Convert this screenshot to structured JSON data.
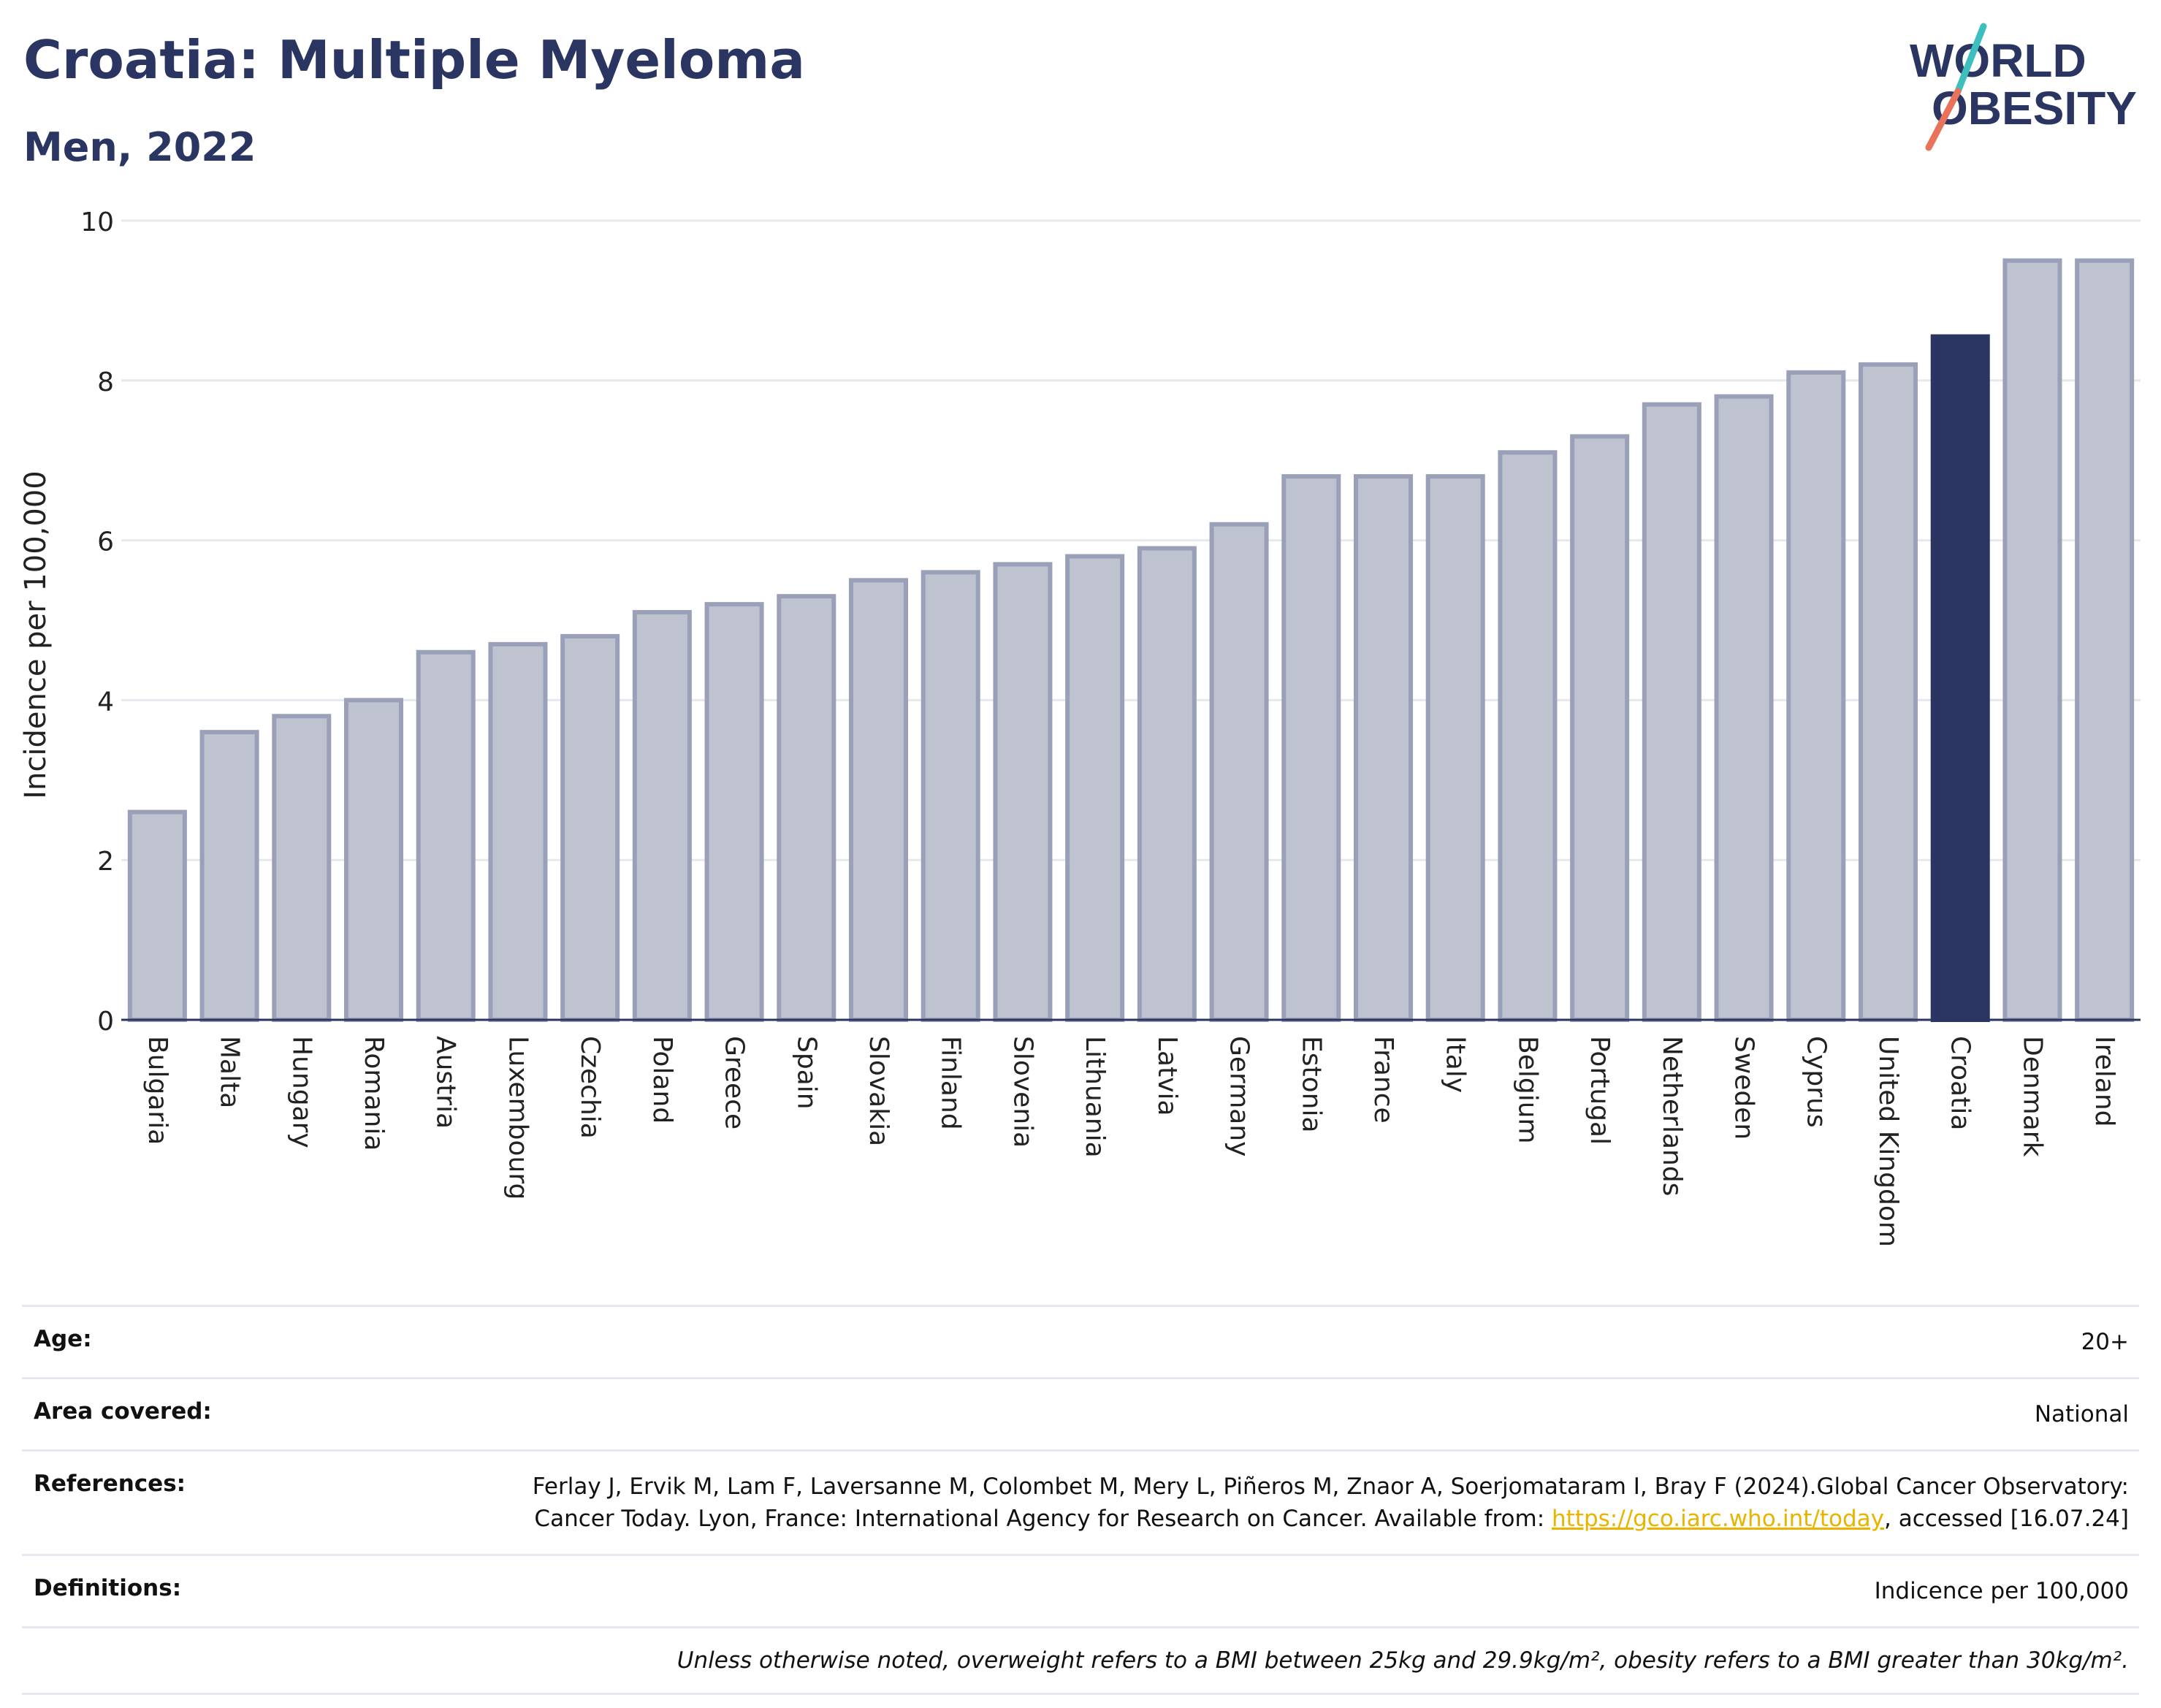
{
  "header": {
    "title": "Croatia: Multiple Myeloma",
    "subtitle": "Men, 2022",
    "logo_line1": "WORLD",
    "logo_line2": "OBESITY"
  },
  "colors": {
    "bar": "#bfc3d0",
    "bar_edge": "#9aa0b8",
    "highlight": "#2a3561",
    "title": "#2a3561",
    "grid": "#e6e8ee",
    "logo_teal": "#3dbfbf",
    "logo_coral": "#e8735a"
  },
  "chart_data": {
    "type": "bar",
    "title": "Croatia: Multiple Myeloma",
    "subtitle": "Men, 2022",
    "ylabel": "Incidence per 100,000",
    "xlabel": "",
    "ylim": [
      0,
      10
    ],
    "yticks": [
      0,
      2,
      4,
      6,
      8,
      10
    ],
    "grid": true,
    "highlight_category": "Croatia",
    "categories": [
      "Bulgaria",
      "Malta",
      "Hungary",
      "Romania",
      "Austria",
      "Luxembourg",
      "Czechia",
      "Poland",
      "Greece",
      "Spain",
      "Slovakia",
      "Finland",
      "Slovenia",
      "Lithuania",
      "Latvia",
      "Germany",
      "Estonia",
      "France",
      "Italy",
      "Belgium",
      "Portugal",
      "Netherlands",
      "Sweden",
      "Cyprus",
      "United Kingdom",
      "Croatia",
      "Denmark",
      "Ireland"
    ],
    "values": [
      2.6,
      3.6,
      3.8,
      4.0,
      4.6,
      4.7,
      4.8,
      5.1,
      5.2,
      5.3,
      5.5,
      5.6,
      5.7,
      5.8,
      5.9,
      6.2,
      6.8,
      6.8,
      6.8,
      7.1,
      7.3,
      7.7,
      7.8,
      8.1,
      8.2,
      8.55,
      9.5,
      9.5
    ]
  },
  "meta": {
    "age_label": "Age:",
    "age_value": "20+",
    "area_label": "Area covered:",
    "area_value": "National",
    "references_label": "References:",
    "references_text_1": "Ferlay J, Ervik M, Lam F, Laversanne M, Colombet M, Mery L, Piñeros M, Znaor A, Soerjomataram I, Bray F (2024).Global Cancer Observatory: Cancer Today. Lyon, France: International Agency for Research on Cancer. Available from: ",
    "references_link": "https://gco.iarc.who.int/today",
    "references_text_2": ", accessed [16.07.24]",
    "definitions_label": "Definitions:",
    "definitions_value": "Indicence per 100,000",
    "note": "Unless otherwise noted, overweight refers to a BMI between 25kg and 29.9kg/m², obesity refers to a BMI greater than 30kg/m²."
  }
}
